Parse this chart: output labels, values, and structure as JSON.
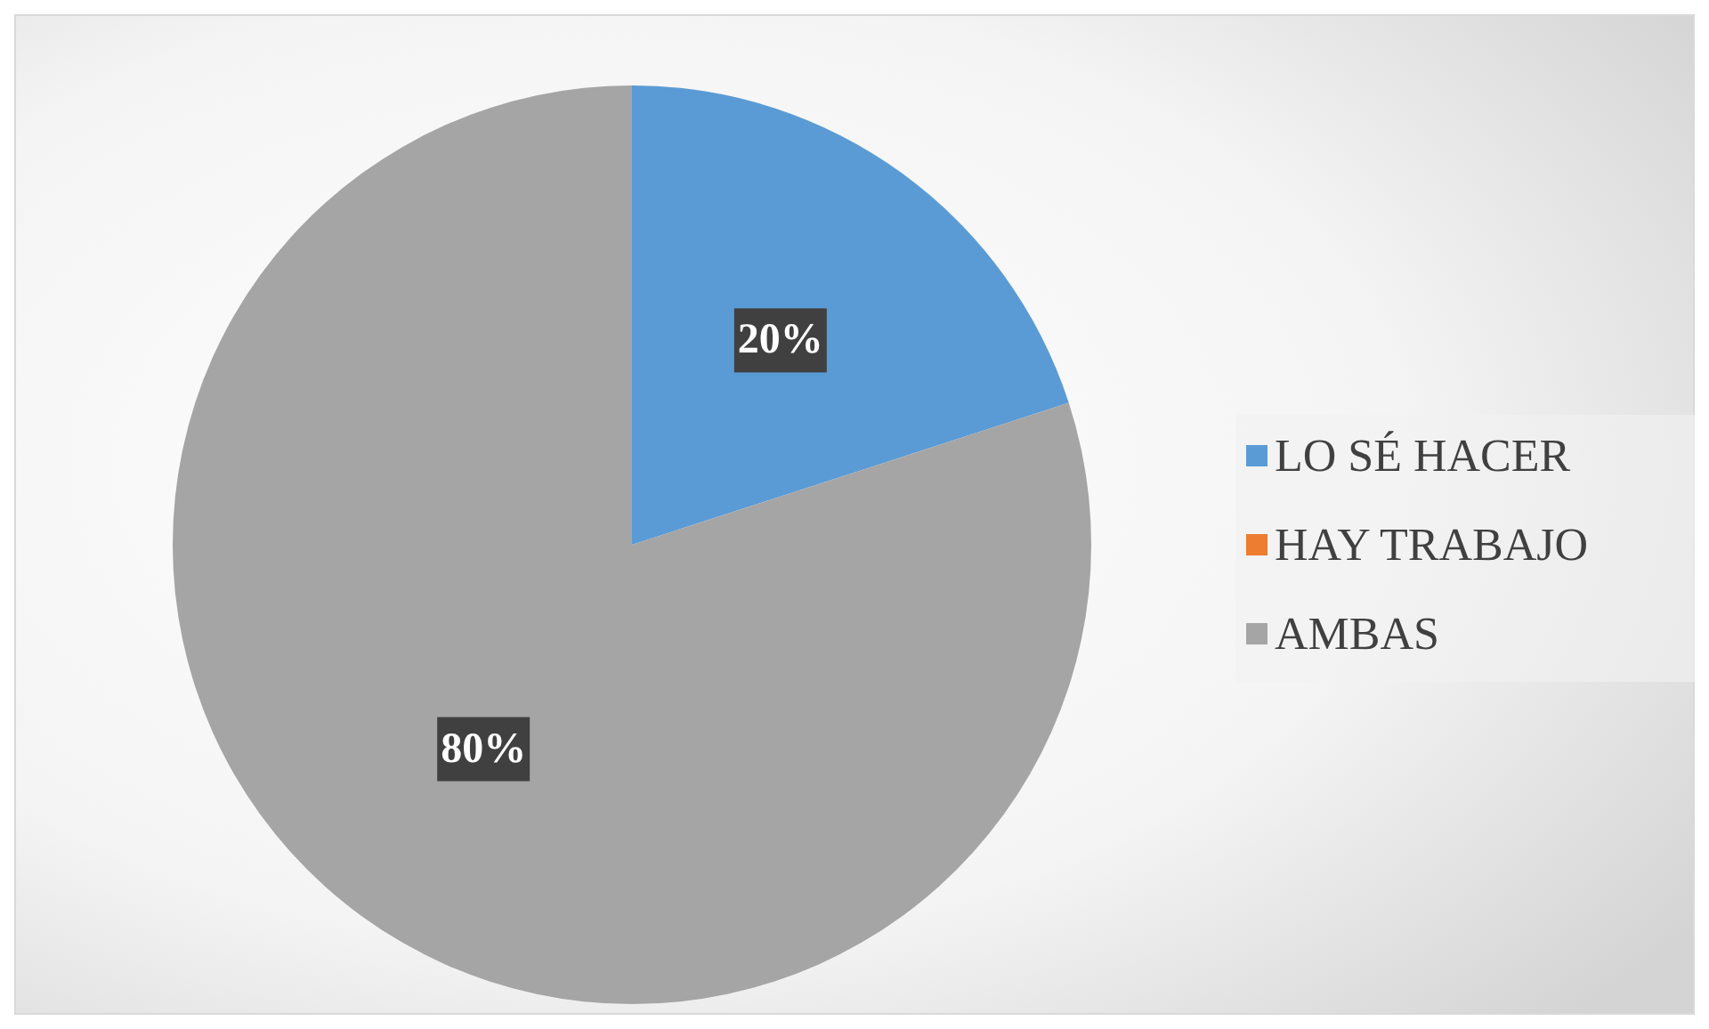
{
  "chart_data": {
    "type": "pie",
    "categories": [
      "LO SÉ HACER",
      "HAY TRABAJO",
      "AMBAS"
    ],
    "values": [
      20,
      0,
      80
    ],
    "colors": [
      "#5b9bd5",
      "#ed7d31",
      "#a5a5a5"
    ],
    "value_labels": [
      "20%",
      null,
      "80%"
    ],
    "legend": "right"
  }
}
